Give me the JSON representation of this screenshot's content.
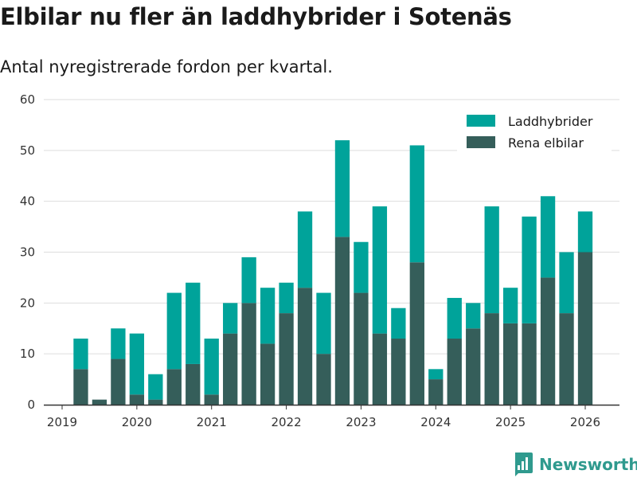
{
  "title": "Elbilar nu fler än laddhybrider i Sotenäs",
  "subtitle": "Antal nyregistrerade fordon per kvartal.",
  "brand": {
    "name": "Newsworthy"
  },
  "colors": {
    "laddhybrider": "#00a39a",
    "elbilar": "#355e5a",
    "grid": "#dddddd",
    "axis": "#333333"
  },
  "chart_data": {
    "type": "bar",
    "stacked": true,
    "categories": [
      "2019 Q2",
      "2019 Q3",
      "2019 Q4",
      "2020 Q1",
      "2020 Q2",
      "2020 Q3",
      "2020 Q4",
      "2021 Q1",
      "2021 Q2",
      "2021 Q3",
      "2021 Q4",
      "2022 Q1",
      "2022 Q2",
      "2022 Q3",
      "2022 Q4",
      "2023 Q1",
      "2023 Q2",
      "2023 Q3",
      "2023 Q4",
      "2024 Q1",
      "2024 Q2",
      "2024 Q3",
      "2024 Q4",
      "2025 Q1",
      "2025 Q2",
      "2025 Q3",
      "2025 Q4",
      "2026 Q1"
    ],
    "series": [
      {
        "name": "Rena elbilar",
        "values": [
          7,
          1,
          9,
          2,
          1,
          7,
          8,
          2,
          14,
          20,
          12,
          18,
          23,
          10,
          33,
          22,
          14,
          13,
          28,
          5,
          13,
          15,
          18,
          16,
          16,
          25,
          18,
          30
        ]
      },
      {
        "name": "Laddhybrider",
        "values": [
          6,
          0,
          6,
          12,
          5,
          15,
          16,
          11,
          6,
          9,
          11,
          6,
          15,
          12,
          19,
          10,
          25,
          6,
          23,
          2,
          8,
          5,
          21,
          7,
          21,
          16,
          12,
          8
        ]
      }
    ],
    "legend": [
      "Laddhybrider",
      "Rena elbilar"
    ],
    "legend_position": "top-right",
    "xticks": [
      "2019",
      "2020",
      "2021",
      "2022",
      "2023",
      "2024",
      "2025",
      "2026"
    ],
    "yticks": [
      0,
      10,
      20,
      30,
      40,
      50,
      60
    ],
    "ylim": [
      0,
      60
    ],
    "xlabel": "",
    "ylabel": "",
    "grid": true
  }
}
